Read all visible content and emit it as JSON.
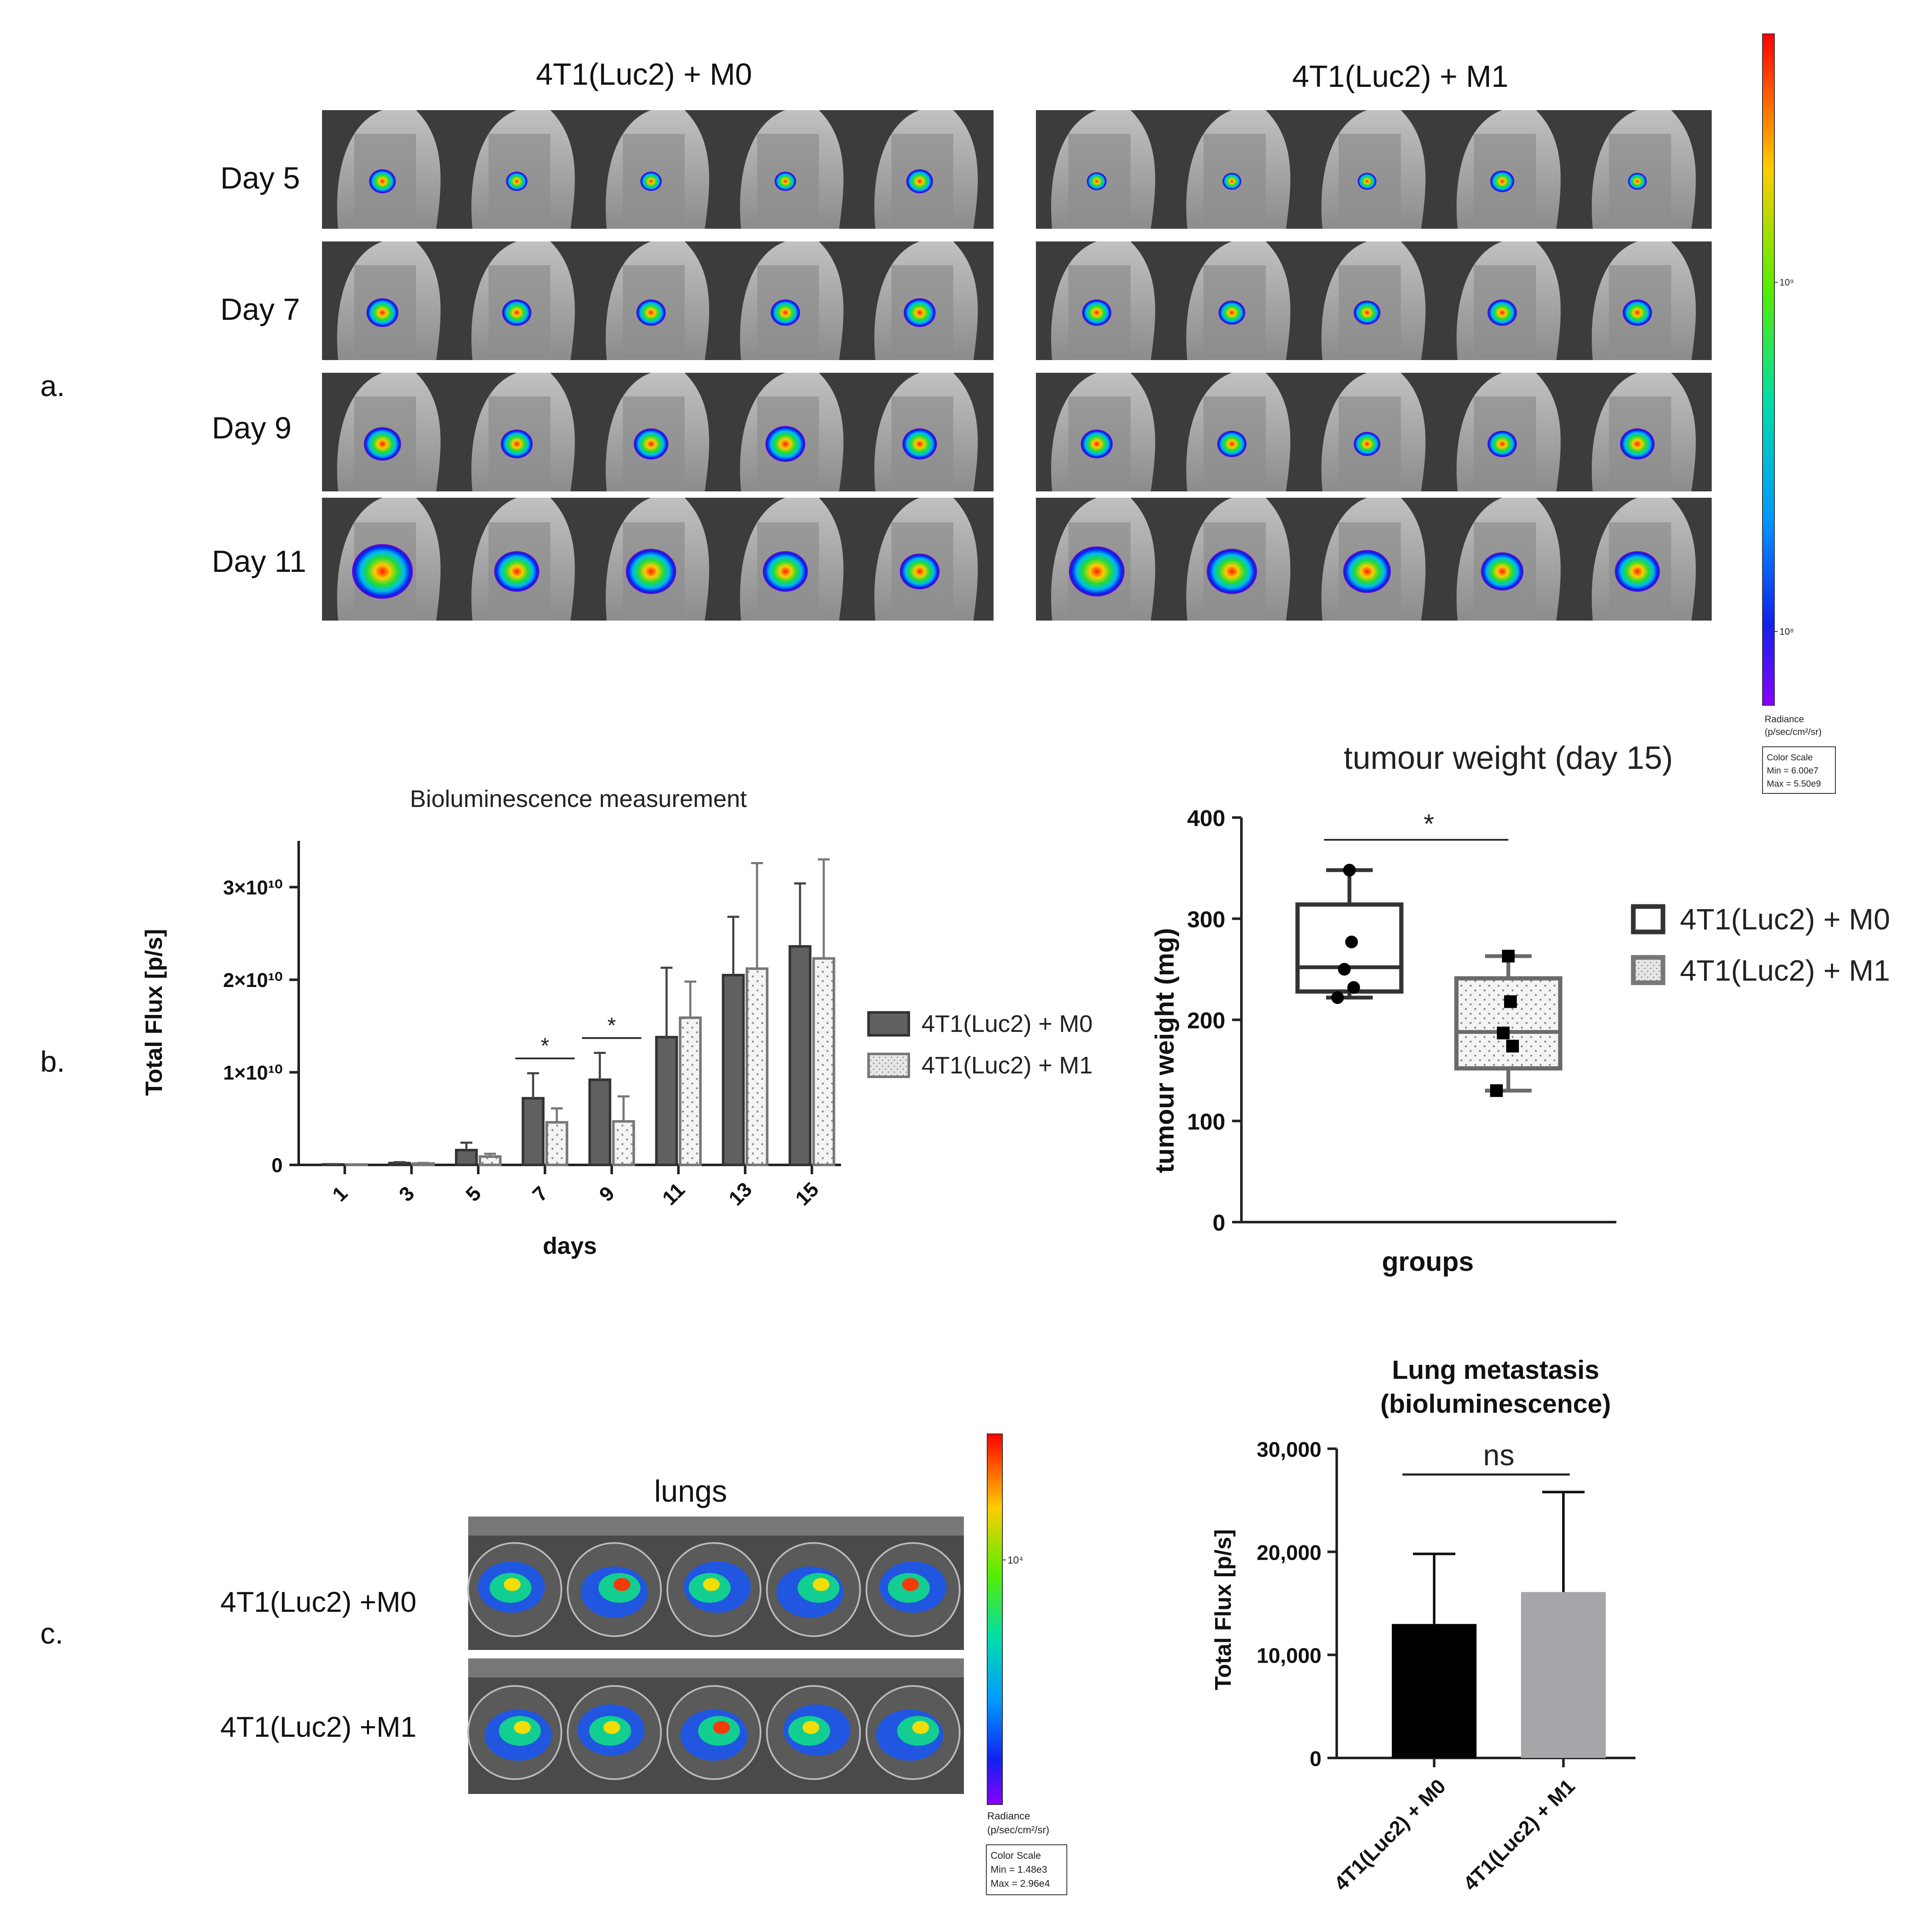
{
  "panel_labels": {
    "a": "a.",
    "b": "b.",
    "c": "c."
  },
  "panel_a": {
    "group_titles": [
      "4T1(Luc2) + M0",
      "4T1(Luc2) + M1"
    ],
    "rows": [
      "Day 5",
      "Day 7",
      "Day 9",
      "Day 11"
    ],
    "blob_intensity": [
      [
        [
          0.25,
          0.15,
          0.15,
          0.15,
          0.25
        ],
        [
          0.12,
          0.1,
          0.1,
          0.2,
          0.1
        ]
      ],
      [
        [
          0.35,
          0.3,
          0.3,
          0.3,
          0.35
        ],
        [
          0.3,
          0.25,
          0.25,
          0.3,
          0.3
        ]
      ],
      [
        [
          0.45,
          0.35,
          0.4,
          0.5,
          0.4
        ],
        [
          0.35,
          0.3,
          0.25,
          0.3,
          0.4
        ]
      ],
      [
        [
          0.9,
          0.6,
          0.7,
          0.6,
          0.5
        ],
        [
          0.8,
          0.7,
          0.65,
          0.55,
          0.6
        ]
      ]
    ],
    "scale": {
      "ticks": [
        {
          "label": "10⁹",
          "frac": 0.37
        },
        {
          "label": "10⁸",
          "frac": 0.89
        }
      ],
      "radiance_label": "Radiance",
      "radiance_units": "(p/sec/cm²/sr)",
      "box_lines": [
        "Color Scale",
        "Min = 6.00e7",
        "Max = 5.50e9"
      ]
    }
  },
  "panel_c_image": {
    "title": "lungs",
    "rows": [
      "4T1(Luc2) +M0",
      "4T1(Luc2) +M1"
    ],
    "scale": {
      "ticks": [
        {
          "label": "10⁴",
          "frac": 0.34
        }
      ],
      "radiance_label": "Radiance",
      "radiance_units": "(p/sec/cm²/sr)",
      "box_lines": [
        "Color Scale",
        "Min = 1.48e3",
        "Max = 2.96e4"
      ]
    }
  },
  "chart_data": [
    {
      "type": "bar",
      "title": "Bioluminescence measurement",
      "xlabel": "days",
      "ylabel": "Total Flux [p/s]",
      "categories": [
        "1",
        "3",
        "5",
        "7",
        "9",
        "11",
        "13",
        "15"
      ],
      "ylim": [
        0,
        35000000000
      ],
      "yticks": [
        {
          "value": 0,
          "label": "0"
        },
        {
          "value": 10000000000,
          "label": "1×10¹⁰"
        },
        {
          "value": 20000000000,
          "label": "2×10¹⁰"
        },
        {
          "value": 30000000000,
          "label": "3×10¹⁰"
        }
      ],
      "series": [
        {
          "name": "4T1(Luc2) + M0",
          "color": "#606060",
          "values": [
            50000000,
            200000000,
            1600000000,
            7200000000,
            9200000000,
            13800000000,
            20500000000,
            23600000000
          ],
          "errors": [
            30000000,
            100000000,
            800000000,
            2700000000,
            2900000000,
            7500000000,
            6300000000,
            6800000000
          ]
        },
        {
          "name": "4T1(Luc2) + M1",
          "color": "#dedede",
          "values": [
            40000000,
            150000000,
            900000000,
            4600000000,
            4700000000,
            15900000000,
            21200000000,
            22300000000
          ],
          "errors": [
            20000000,
            70000000,
            300000000,
            1500000000,
            2700000000,
            3900000000,
            11400000000,
            10700000000
          ]
        }
      ],
      "significance": [
        {
          "category": "7",
          "label": "*"
        },
        {
          "category": "9",
          "label": "*"
        }
      ],
      "legend": "right"
    },
    {
      "type": "box",
      "title": "tumour weight (day 15)",
      "xlabel": "groups",
      "ylabel": "tumour weight (mg)",
      "ylim": [
        0,
        400
      ],
      "yticks": [
        0,
        100,
        200,
        300,
        400
      ],
      "groups": [
        {
          "name": "4T1(Luc2) + M0",
          "min": 222,
          "q1": 228,
          "median": 252,
          "q3": 314,
          "max": 348,
          "points": [
            348,
            277,
            250,
            232,
            222
          ],
          "marker": "circle",
          "fill": "#ffffff"
        },
        {
          "name": "4T1(Luc2) + M1",
          "min": 130,
          "q1": 152,
          "median": 188,
          "q3": 241,
          "max": 263,
          "points": [
            263,
            218,
            187,
            174,
            130
          ],
          "marker": "square",
          "fill": "#eeeeee"
        }
      ],
      "significance": "*",
      "legend": "right"
    },
    {
      "type": "bar",
      "title": "Lung metastasis (bioluminescence)",
      "title_lines": [
        "Lung metastasis",
        "(bioluminescence)"
      ],
      "ylabel": "Total Flux [p/s]",
      "ylim": [
        0,
        30000
      ],
      "yticks": [
        {
          "value": 0,
          "label": "0"
        },
        {
          "value": 10000,
          "label": "10,000"
        },
        {
          "value": 20000,
          "label": "20,000"
        },
        {
          "value": 30000,
          "label": "30,000"
        }
      ],
      "categories": [
        "4T1(Luc2) + M0",
        "4T1(Luc2) + M1"
      ],
      "values": [
        13000,
        16100
      ],
      "errors": [
        6800,
        9700
      ],
      "colors": [
        "#000000",
        "#a6a6aa"
      ],
      "significance": "ns"
    }
  ]
}
